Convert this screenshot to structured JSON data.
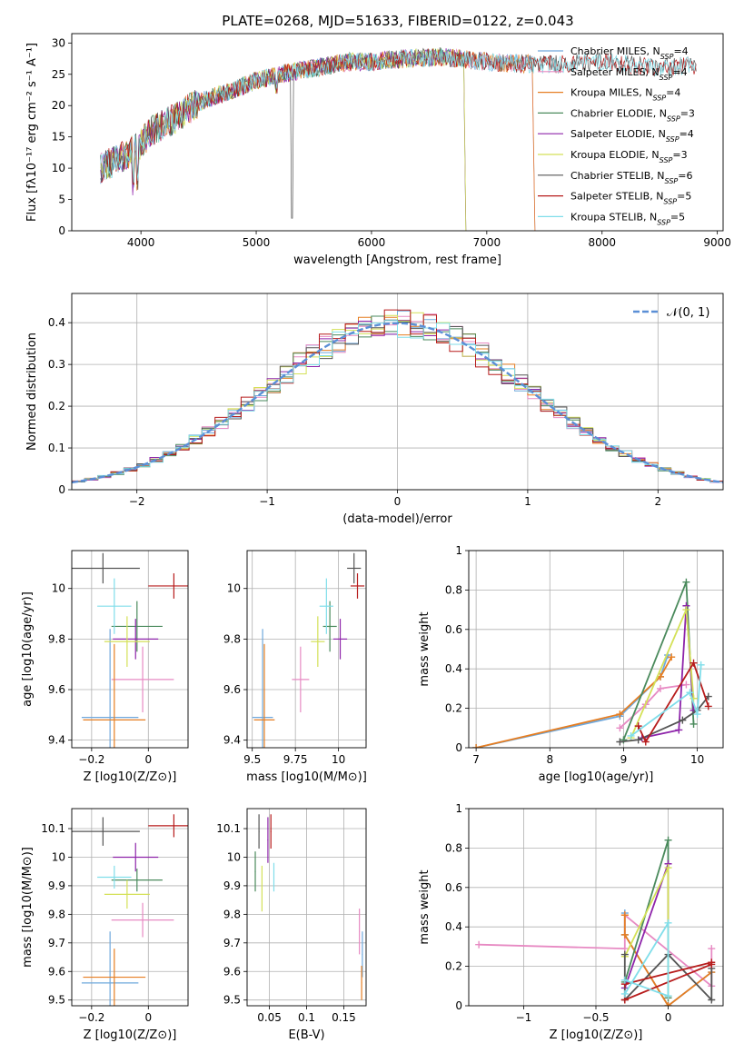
{
  "title": "PLATE=0268, MJD=51633, FIBERID=0122, z=0.043",
  "colors": {
    "Chabrier MILES": "#6fa8dc",
    "Salpeter MILES": "#e78ac3",
    "Kroupa MILES": "#e67e22",
    "Chabrier ELODIE": "#4a8a5c",
    "Salpeter ELODIE": "#8e24aa",
    "Kroupa ELODIE": "#d4e157",
    "Chabrier STELIB": "#555555",
    "Salpeter STELIB": "#b71c1c",
    "Kroupa STELIB": "#80deea"
  },
  "chart_data": [
    {
      "id": "spectrum",
      "type": "line",
      "title": "PLATE=0268, MJD=51633, FIBERID=0122, z=0.043",
      "xlabel": "wavelength [Angstrom, rest frame]",
      "ylabel": "Flux [fλ10⁻¹⁷ erg cm⁻² s⁻¹ A⁻¹]",
      "xlim": [
        3400,
        9050
      ],
      "ylim": [
        0,
        31.5
      ],
      "xticks": [
        4000,
        5000,
        6000,
        7000,
        8000,
        9000
      ],
      "yticks": [
        0,
        5,
        10,
        15,
        20,
        25,
        30
      ],
      "grid": false,
      "legend_position": "top-right",
      "continuum": [
        [
          3650,
          10
        ],
        [
          3800,
          11.5
        ],
        [
          3950,
          13
        ],
        [
          4100,
          16
        ],
        [
          4300,
          18
        ],
        [
          4500,
          20.5
        ],
        [
          4800,
          22.5
        ],
        [
          5000,
          24
        ],
        [
          5200,
          25
        ],
        [
          5500,
          26
        ],
        [
          5800,
          27
        ],
        [
          6000,
          27
        ],
        [
          6300,
          27.5
        ],
        [
          6600,
          27.8
        ],
        [
          7000,
          27
        ],
        [
          7500,
          26.5
        ],
        [
          8000,
          27
        ],
        [
          8500,
          26
        ],
        [
          8820,
          26.5
        ]
      ],
      "series": [
        {
          "name": "Chabrier MILES, N_SSP=4",
          "end": 7400
        },
        {
          "name": "Salpeter MILES, N_SSP=4",
          "end": 7400
        },
        {
          "name": "Kroupa MILES, N_SSP=4",
          "end": 7400
        },
        {
          "name": "Chabrier ELODIE, N_SSP=3",
          "end": 6800
        },
        {
          "name": "Salpeter ELODIE, N_SSP=4",
          "end": 6800
        },
        {
          "name": "Kroupa ELODIE, N_SSP=3",
          "end": 6800
        },
        {
          "name": "Chabrier STELIB, N_SSP=6",
          "end": 8820
        },
        {
          "name": "Salpeter STELIB, N_SSP=5",
          "end": 8820
        },
        {
          "name": "Kroupa STELIB, N_SSP=5",
          "end": 8820
        }
      ]
    },
    {
      "id": "residuals",
      "type": "line",
      "xlabel": "(data-model)/error",
      "ylabel": "Normed distribution",
      "xlim": [
        -2.5,
        2.5
      ],
      "ylim": [
        0,
        0.47
      ],
      "xticks": [
        -2,
        -1,
        0,
        1,
        2
      ],
      "yticks": [
        0.0,
        0.1,
        0.2,
        0.3,
        0.4
      ],
      "grid": true,
      "legend_position": "top-right",
      "reference": "𝒩(0, 1)",
      "bin_width": 0.1
    },
    {
      "id": "age_vs_Z",
      "type": "scatter",
      "xlabel": "Z [log10(Z/Z⊙)]",
      "ylabel": "age  [log10(age/yr)]",
      "xlim": [
        -0.27,
        0.14
      ],
      "ylim": [
        9.37,
        10.15
      ],
      "xticks": [
        -0.2,
        0.0
      ],
      "yticks": [
        9.4,
        9.6,
        9.8,
        10.0
      ],
      "grid": true,
      "points": [
        {
          "model": "Chabrier MILES",
          "x": -0.135,
          "y": 9.49,
          "xerr": 0.1,
          "yerr": 0.35
        },
        {
          "model": "Salpeter MILES",
          "x": -0.02,
          "y": 9.64,
          "xerr": 0.11,
          "yerr": 0.13
        },
        {
          "model": "Kroupa MILES",
          "x": -0.12,
          "y": 9.48,
          "xerr": 0.11,
          "yerr": 0.3
        },
        {
          "model": "Chabrier ELODIE",
          "x": -0.04,
          "y": 9.85,
          "xerr": 0.09,
          "yerr": 0.1
        },
        {
          "model": "Salpeter ELODIE",
          "x": -0.045,
          "y": 9.8,
          "xerr": 0.08,
          "yerr": 0.08
        },
        {
          "model": "Kroupa ELODIE",
          "x": -0.075,
          "y": 9.79,
          "xerr": 0.08,
          "yerr": 0.1
        },
        {
          "model": "Chabrier STELIB",
          "x": -0.16,
          "y": 10.08,
          "xerr": 0.13,
          "yerr": 0.06
        },
        {
          "model": "Salpeter STELIB",
          "x": 0.09,
          "y": 10.01,
          "xerr": 0.09,
          "yerr": 0.05
        },
        {
          "model": "Kroupa STELIB",
          "x": -0.12,
          "y": 9.93,
          "xerr": 0.06,
          "yerr": 0.11
        }
      ]
    },
    {
      "id": "age_vs_mass",
      "type": "scatter",
      "xlabel": "mass [log10(M/M⊙)]",
      "ylabel": "",
      "xlim": [
        9.47,
        10.16
      ],
      "ylim": [
        9.37,
        10.15
      ],
      "xticks": [
        9.5,
        9.75,
        10.0
      ],
      "yticks": [
        9.4,
        9.6,
        9.8,
        10.0
      ],
      "grid": true,
      "points": [
        {
          "model": "Chabrier MILES",
          "x": 9.56,
          "y": 9.49,
          "xerr": 0.06,
          "yerr": 0.35
        },
        {
          "model": "Salpeter MILES",
          "x": 9.78,
          "y": 9.64,
          "xerr": 0.05,
          "yerr": 0.13
        },
        {
          "model": "Kroupa MILES",
          "x": 9.57,
          "y": 9.48,
          "xerr": 0.06,
          "yerr": 0.3
        },
        {
          "model": "Chabrier ELODIE",
          "x": 9.95,
          "y": 9.85,
          "xerr": 0.04,
          "yerr": 0.1
        },
        {
          "model": "Salpeter ELODIE",
          "x": 10.01,
          "y": 9.8,
          "xerr": 0.04,
          "yerr": 0.08
        },
        {
          "model": "Kroupa ELODIE",
          "x": 9.88,
          "y": 9.79,
          "xerr": 0.04,
          "yerr": 0.1
        },
        {
          "model": "Chabrier STELIB",
          "x": 10.09,
          "y": 10.08,
          "xerr": 0.04,
          "yerr": 0.06
        },
        {
          "model": "Salpeter STELIB",
          "x": 10.11,
          "y": 10.01,
          "xerr": 0.04,
          "yerr": 0.05
        },
        {
          "model": "Kroupa STELIB",
          "x": 9.93,
          "y": 9.93,
          "xerr": 0.04,
          "yerr": 0.11
        }
      ]
    },
    {
      "id": "massweight_vs_age",
      "type": "line",
      "xlabel": "age  [log10(age/yr)]",
      "ylabel": "mass weight",
      "xlim": [
        6.9,
        10.35
      ],
      "ylim": [
        0,
        1.0
      ],
      "xticks": [
        7,
        8,
        9,
        10
      ],
      "yticks": [
        0.0,
        0.2,
        0.4,
        0.6,
        0.8,
        1.0
      ],
      "grid": true,
      "series": [
        {
          "model": "Chabrier MILES",
          "x": [
            7.0,
            8.95,
            9.5,
            9.6
          ],
          "y": [
            0.0,
            0.16,
            0.36,
            0.47
          ]
        },
        {
          "model": "Salpeter MILES",
          "x": [
            8.95,
            9.3,
            9.5,
            9.85
          ],
          "y": [
            0.1,
            0.22,
            0.3,
            0.32
          ]
        },
        {
          "model": "Kroupa MILES",
          "x": [
            7.0,
            8.95,
            9.5,
            9.65
          ],
          "y": [
            0.0,
            0.17,
            0.36,
            0.46
          ]
        },
        {
          "model": "Chabrier ELODIE",
          "x": [
            9.0,
            9.85,
            9.95
          ],
          "y": [
            0.04,
            0.84,
            0.12
          ]
        },
        {
          "model": "Salpeter ELODIE",
          "x": [
            9.25,
            9.75,
            9.85,
            9.95
          ],
          "y": [
            0.05,
            0.09,
            0.72,
            0.19
          ]
        },
        {
          "model": "Kroupa ELODIE",
          "x": [
            9.1,
            9.85,
            9.95
          ],
          "y": [
            0.05,
            0.7,
            0.25
          ]
        },
        {
          "model": "Chabrier STELIB",
          "x": [
            8.95,
            9.2,
            9.8,
            10.0,
            10.15
          ],
          "y": [
            0.03,
            0.04,
            0.14,
            0.19,
            0.26
          ]
        },
        {
          "model": "Salpeter STELIB",
          "x": [
            9.2,
            9.3,
            9.95,
            10.15
          ],
          "y": [
            0.11,
            0.03,
            0.43,
            0.21
          ]
        },
        {
          "model": "Kroupa STELIB",
          "x": [
            9.1,
            9.9,
            10.0,
            10.05
          ],
          "y": [
            0.06,
            0.28,
            0.17,
            0.42
          ]
        }
      ]
    },
    {
      "id": "mass_vs_Z",
      "type": "scatter",
      "xlabel": "Z [log10(Z/Z⊙)]",
      "ylabel": "mass [log10(M/M⊙)]",
      "xlim": [
        -0.27,
        0.14
      ],
      "ylim": [
        9.48,
        10.17
      ],
      "xticks": [
        -0.2,
        0.0
      ],
      "yticks": [
        9.5,
        9.6,
        9.7,
        9.8,
        9.9,
        10.0,
        10.1
      ],
      "grid": true,
      "points": [
        {
          "model": "Chabrier MILES",
          "x": -0.135,
          "y": 9.56,
          "xerr": 0.1,
          "yerr": 0.18
        },
        {
          "model": "Salpeter MILES",
          "x": -0.02,
          "y": 9.78,
          "xerr": 0.11,
          "yerr": 0.06
        },
        {
          "model": "Kroupa MILES",
          "x": -0.12,
          "y": 9.58,
          "xerr": 0.11,
          "yerr": 0.1
        },
        {
          "model": "Chabrier ELODIE",
          "x": -0.04,
          "y": 9.92,
          "xerr": 0.09,
          "yerr": 0.04
        },
        {
          "model": "Salpeter ELODIE",
          "x": -0.045,
          "y": 10.0,
          "xerr": 0.08,
          "yerr": 0.05
        },
        {
          "model": "Kroupa ELODIE",
          "x": -0.075,
          "y": 9.87,
          "xerr": 0.08,
          "yerr": 0.05
        },
        {
          "model": "Chabrier STELIB",
          "x": -0.16,
          "y": 10.09,
          "xerr": 0.13,
          "yerr": 0.05
        },
        {
          "model": "Salpeter STELIB",
          "x": 0.09,
          "y": 10.11,
          "xerr": 0.09,
          "yerr": 0.04
        },
        {
          "model": "Kroupa STELIB",
          "x": -0.12,
          "y": 9.93,
          "xerr": 0.06,
          "yerr": 0.04
        }
      ]
    },
    {
      "id": "mass_vs_ebv",
      "type": "scatter",
      "xlabel": "E(B-V)",
      "ylabel": "",
      "xlim": [
        0.02,
        0.18
      ],
      "ylim": [
        9.48,
        10.17
      ],
      "xticks": [
        0.05,
        0.1,
        0.15
      ],
      "yticks": [
        9.5,
        9.6,
        9.7,
        9.8,
        9.9,
        10.0,
        10.1
      ],
      "grid": true,
      "points": [
        {
          "model": "Chabrier MILES",
          "x": 0.175,
          "y": 9.66,
          "yerr": 0.08
        },
        {
          "model": "Salpeter MILES",
          "x": 0.171,
          "y": 9.74,
          "yerr": 0.08
        },
        {
          "model": "Kroupa MILES",
          "x": 0.174,
          "y": 9.56,
          "yerr": 0.06
        },
        {
          "model": "Chabrier ELODIE",
          "x": 0.031,
          "y": 9.95,
          "yerr": 0.07
        },
        {
          "model": "Salpeter ELODIE",
          "x": 0.048,
          "y": 10.06,
          "yerr": 0.08
        },
        {
          "model": "Kroupa ELODIE",
          "x": 0.04,
          "y": 9.89,
          "yerr": 0.08
        },
        {
          "model": "Chabrier STELIB",
          "x": 0.036,
          "y": 10.09,
          "yerr": 0.06
        },
        {
          "model": "Salpeter STELIB",
          "x": 0.052,
          "y": 10.09,
          "yerr": 0.06
        },
        {
          "model": "Kroupa STELIB",
          "x": 0.056,
          "y": 9.93,
          "yerr": 0.05
        }
      ]
    },
    {
      "id": "massweight_vs_Z",
      "type": "line",
      "xlabel": "Z [log10(Z/Z⊙)]",
      "ylabel": "mass weight",
      "xlim": [
        -1.38,
        0.38
      ],
      "ylim": [
        0,
        1.0
      ],
      "xticks": [
        -1.0,
        -0.5,
        0.0
      ],
      "yticks": [
        0.0,
        0.2,
        0.4,
        0.6,
        0.8,
        1.0
      ],
      "grid": true,
      "series": [
        {
          "model": "Chabrier MILES",
          "x": [
            -0.3,
            -0.3,
            0.0,
            0.3
          ],
          "y": [
            0.47,
            0.36,
            0.0,
            0.17
          ]
        },
        {
          "model": "Salpeter MILES",
          "x": [
            -1.31,
            -0.3,
            -0.3,
            0.3,
            0.3
          ],
          "y": [
            0.31,
            0.29,
            0.46,
            0.1,
            0.29
          ]
        },
        {
          "model": "Kroupa MILES",
          "x": [
            -0.3,
            -0.3,
            0.0,
            0.3
          ],
          "y": [
            0.46,
            0.36,
            0.0,
            0.17
          ]
        },
        {
          "model": "Chabrier ELODIE",
          "x": [
            -0.3,
            0.0,
            0.0
          ],
          "y": [
            0.12,
            0.84,
            0.04
          ]
        },
        {
          "model": "Salpeter ELODIE",
          "x": [
            -0.3,
            0.0,
            0.0
          ],
          "y": [
            0.09,
            0.72,
            0.05
          ]
        },
        {
          "model": "Kroupa ELODIE",
          "x": [
            -0.3,
            0.0,
            0.0
          ],
          "y": [
            0.25,
            0.7,
            0.05
          ]
        },
        {
          "model": "Chabrier STELIB",
          "x": [
            -0.3,
            -0.3,
            0.0,
            0.3,
            0.3
          ],
          "y": [
            0.26,
            0.03,
            0.26,
            0.03,
            0.19
          ]
        },
        {
          "model": "Salpeter STELIB",
          "x": [
            -0.3,
            0.3,
            0.3,
            -0.3
          ],
          "y": [
            0.03,
            0.21,
            0.22,
            0.11
          ]
        },
        {
          "model": "Kroupa STELIB",
          "x": [
            -0.3,
            0.0,
            0.0,
            -0.3
          ],
          "y": [
            0.13,
            0.05,
            0.42,
            0.06
          ]
        }
      ]
    }
  ]
}
